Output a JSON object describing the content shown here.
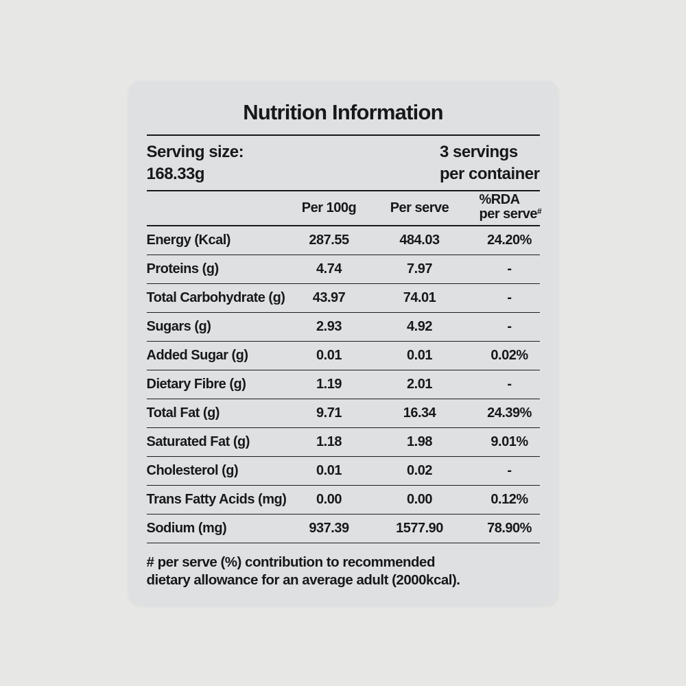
{
  "card": {
    "title": "Nutrition Information",
    "serving": {
      "label": "Serving size:",
      "value": "168.33g",
      "servings_line1": "3 servings",
      "servings_line2": "per container"
    },
    "columns": {
      "per_100g": "Per 100g",
      "per_serve": "Per serve",
      "rda_line1": "%RDA",
      "rda_line2": "per serve",
      "rda_sup": "#"
    },
    "rows": [
      {
        "label": "Energy (Kcal)",
        "per_100g": "287.55",
        "per_serve": "484.03",
        "rda": "24.20%"
      },
      {
        "label": "Proteins (g)",
        "per_100g": "4.74",
        "per_serve": "7.97",
        "rda": "-"
      },
      {
        "label": "Total Carbohydrate (g)",
        "per_100g": "43.97",
        "per_serve": "74.01",
        "rda": "-"
      },
      {
        "label": "Sugars (g)",
        "per_100g": "2.93",
        "per_serve": "4.92",
        "rda": "-"
      },
      {
        "label": "Added Sugar (g)",
        "per_100g": "0.01",
        "per_serve": "0.01",
        "rda": "0.02%"
      },
      {
        "label": "Dietary Fibre (g)",
        "per_100g": "1.19",
        "per_serve": "2.01",
        "rda": "-"
      },
      {
        "label": "Total Fat (g)",
        "per_100g": "9.71",
        "per_serve": "16.34",
        "rda": "24.39%"
      },
      {
        "label": "Saturated Fat (g)",
        "per_100g": "1.18",
        "per_serve": "1.98",
        "rda": "9.01%"
      },
      {
        "label": "Cholesterol (g)",
        "per_100g": "0.01",
        "per_serve": "0.02",
        "rda": "-"
      },
      {
        "label": "Trans Fatty Acids (mg)",
        "per_100g": "0.00",
        "per_serve": "0.00",
        "rda": "0.12%"
      },
      {
        "label": "Sodium (mg)",
        "per_100g": "937.39",
        "per_serve": "1577.90",
        "rda": "78.90%"
      }
    ],
    "footnote_line1": "# per serve (%) contribution to recommended",
    "footnote_line2": "dietary allowance for an average adult (2000kcal).",
    "colors": {
      "page_bg": "#e7e7e6",
      "card_bg": "#dfe0e2",
      "text": "#17181a",
      "rule": "#17181a"
    }
  }
}
